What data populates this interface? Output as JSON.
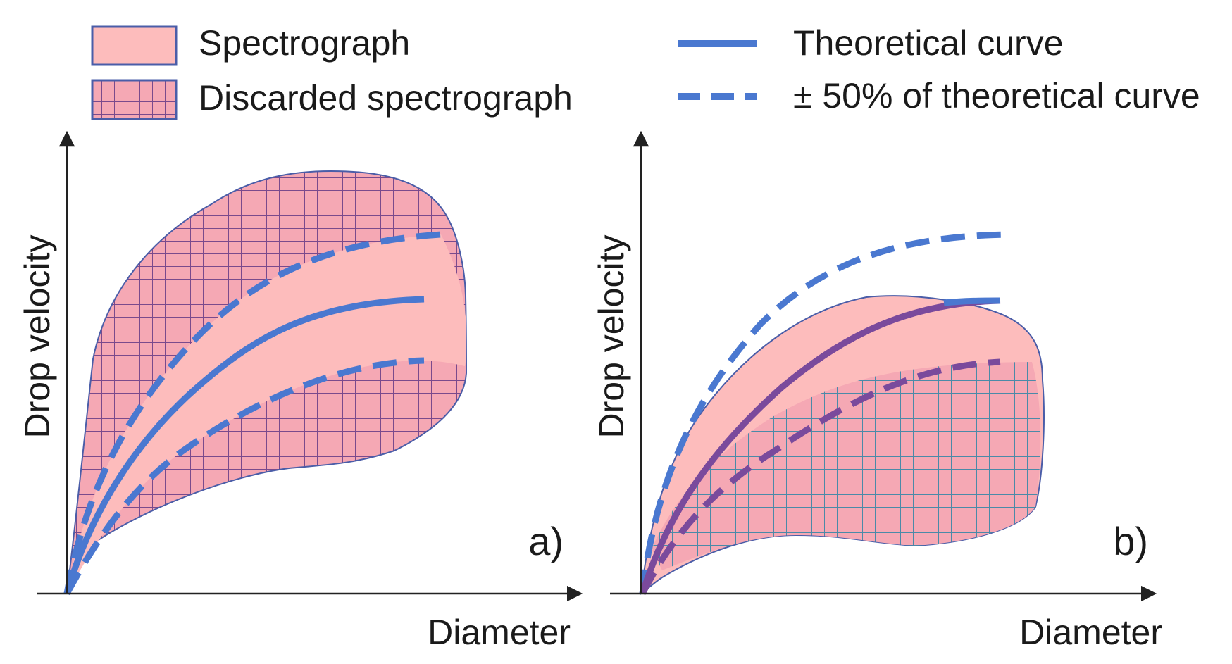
{
  "legend": {
    "spectrograph": "Spectrograph",
    "discarded": "Discarded spectrograph",
    "theoretical": "Theoretical curve",
    "band": "± 50% of theoretical curve"
  },
  "panels": [
    {
      "id": "a",
      "label": "a)",
      "x_axis": "Diameter",
      "y_axis": "Drop velocity"
    },
    {
      "id": "b",
      "label": "b)",
      "x_axis": "Diameter",
      "y_axis": "Drop velocity"
    }
  ],
  "colors": {
    "spectro_fill": "#fdbcbc",
    "spectro_edge": "#4a5da8",
    "hatch_a": "#7a4a8c",
    "hatch_b": "#4a8aa8",
    "curve": "#4a78d0",
    "curve_in_region": "#7a4a9c",
    "axis": "#222222"
  }
}
